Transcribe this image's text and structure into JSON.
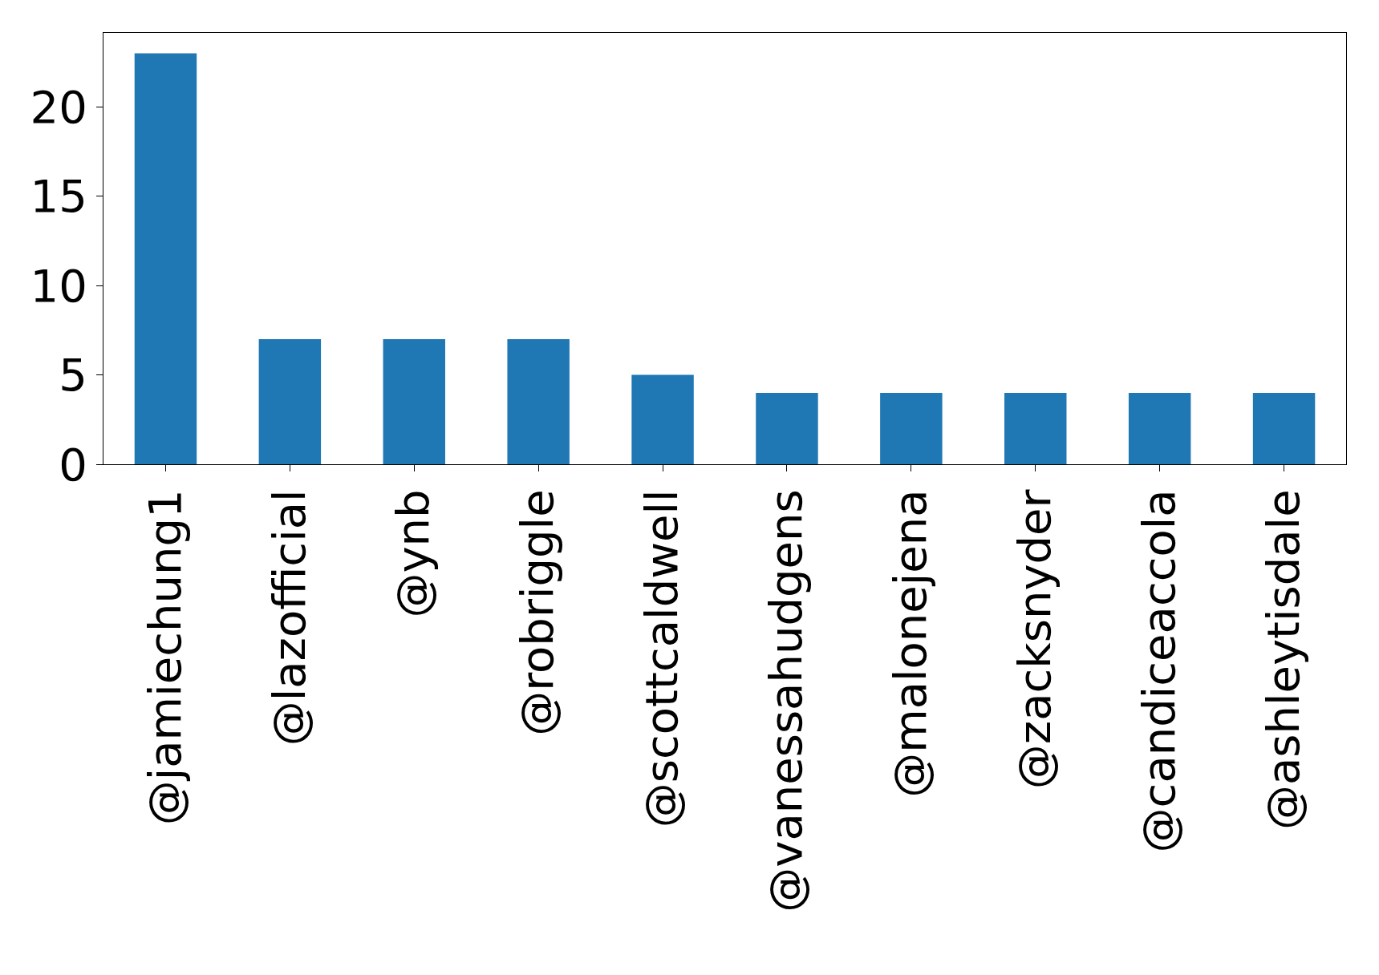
{
  "chart_data": {
    "type": "bar",
    "categories": [
      "@jamiechung1",
      "@lazofficial",
      "@ynb",
      "@robriggle",
      "@scottcaldwell",
      "@vanessahudgens",
      "@malonejena",
      "@zacksnyder",
      "@candiceaccola",
      "@ashleytisdale"
    ],
    "values": [
      23,
      7,
      7,
      7,
      5,
      4,
      4,
      4,
      4,
      4
    ],
    "color": "#1f77b4",
    "ylim": [
      0,
      24.15
    ],
    "yticks": [
      0,
      5,
      10,
      15,
      20
    ]
  }
}
